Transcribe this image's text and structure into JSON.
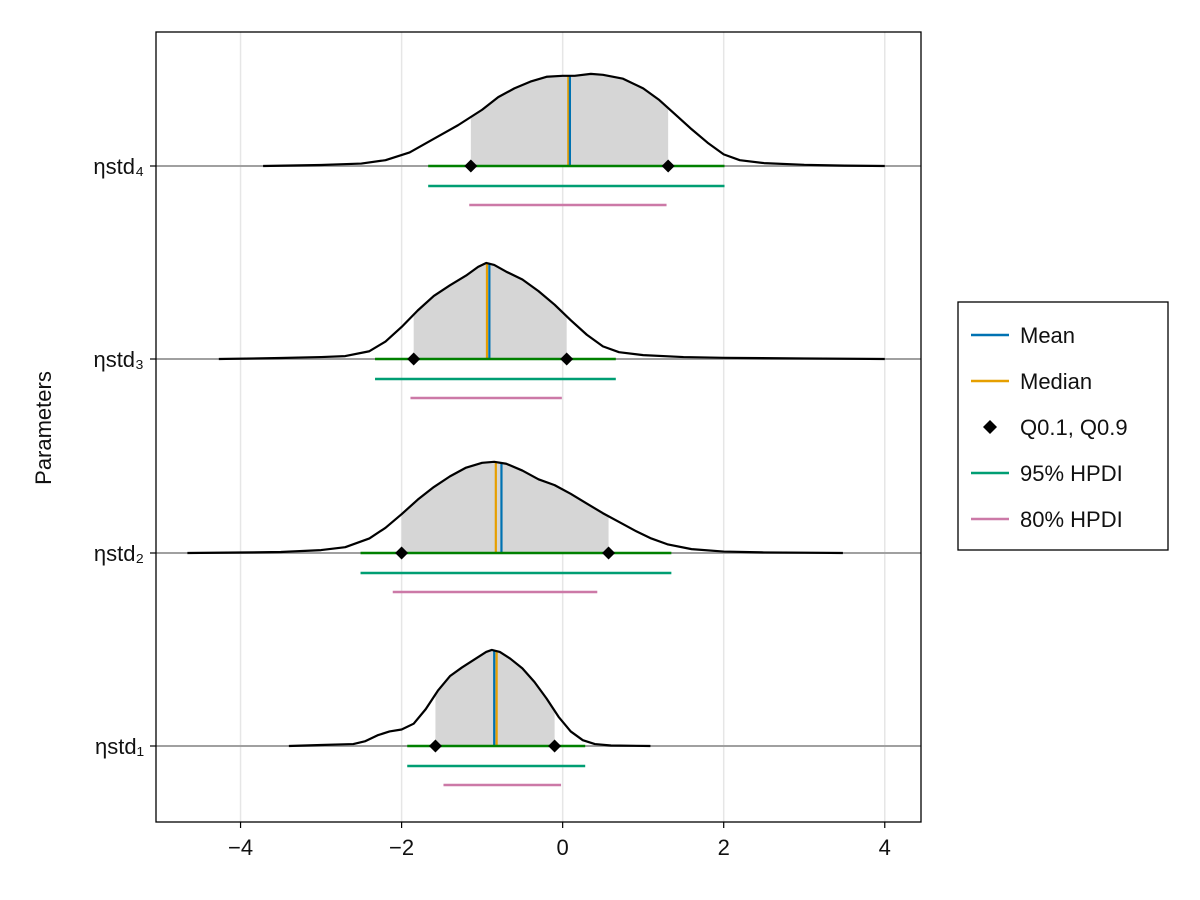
{
  "chart_data": {
    "type": "ridgeline",
    "title": "",
    "xlabel": "",
    "ylabel": "Parameters",
    "xlim": [
      -5.05,
      4.45
    ],
    "x_ticks": [
      -4,
      -2,
      0,
      2,
      4
    ],
    "x_tick_labels": [
      "−4",
      "−2",
      "0",
      "2",
      "4"
    ],
    "grid": true,
    "legend_position": "right",
    "legend": [
      {
        "label": "Mean",
        "kind": "line",
        "color": "#0072b2"
      },
      {
        "label": "Median",
        "kind": "line",
        "color": "#e69f00"
      },
      {
        "label": "Q0.1, Q0.9",
        "kind": "marker",
        "color": "#000000"
      },
      {
        "label": "95% HPDI",
        "kind": "line",
        "color": "#009e73"
      },
      {
        "label": "80% HPDI",
        "kind": "line",
        "color": "#cc79a7"
      }
    ],
    "colors": {
      "density_fill": "#d6d6d6",
      "density_line": "#000000",
      "baseline": "#a0a0a0",
      "q_range": "#008000",
      "mean": "#0072b2",
      "median": "#e69f00",
      "hpdi95": "#009e73",
      "hpdi80": "#cc79a7",
      "grid": "#e6e6e6"
    },
    "parameters": [
      {
        "name": "ηstd₄",
        "mean": 0.09,
        "median": 0.07,
        "q10": -1.14,
        "q90": 1.31,
        "hpdi95": [
          -1.67,
          2.01
        ],
        "hpdi80": [
          -1.16,
          1.29
        ],
        "support": [
          -3.72,
          4.0
        ],
        "density": [
          [
            -3.72,
            0.0
          ],
          [
            -3.0,
            0.01
          ],
          [
            -2.5,
            0.025
          ],
          [
            -2.2,
            0.06
          ],
          [
            -1.9,
            0.14
          ],
          [
            -1.6,
            0.28
          ],
          [
            -1.3,
            0.42
          ],
          [
            -1.0,
            0.58
          ],
          [
            -0.8,
            0.71
          ],
          [
            -0.6,
            0.8
          ],
          [
            -0.4,
            0.87
          ],
          [
            -0.2,
            0.92
          ],
          [
            0.0,
            0.93
          ],
          [
            0.15,
            0.93
          ],
          [
            0.35,
            0.95
          ],
          [
            0.5,
            0.94
          ],
          [
            0.75,
            0.9
          ],
          [
            1.0,
            0.8
          ],
          [
            1.2,
            0.68
          ],
          [
            1.4,
            0.53
          ],
          [
            1.6,
            0.38
          ],
          [
            1.8,
            0.24
          ],
          [
            2.0,
            0.12
          ],
          [
            2.2,
            0.06
          ],
          [
            2.5,
            0.03
          ],
          [
            3.0,
            0.012
          ],
          [
            3.5,
            0.004
          ],
          [
            4.0,
            0.0
          ]
        ]
      },
      {
        "name": "ηstd₃",
        "mean": -0.91,
        "median": -0.94,
        "q10": -1.85,
        "q90": 0.05,
        "hpdi95": [
          -2.33,
          0.66
        ],
        "hpdi80": [
          -1.89,
          -0.01
        ],
        "support": [
          -4.27,
          4.0
        ],
        "density": [
          [
            -4.27,
            0.0
          ],
          [
            -3.5,
            0.01
          ],
          [
            -3.0,
            0.02
          ],
          [
            -2.7,
            0.03
          ],
          [
            -2.4,
            0.08
          ],
          [
            -2.2,
            0.18
          ],
          [
            -2.0,
            0.33
          ],
          [
            -1.8,
            0.5
          ],
          [
            -1.6,
            0.65
          ],
          [
            -1.4,
            0.76
          ],
          [
            -1.2,
            0.86
          ],
          [
            -1.05,
            0.95
          ],
          [
            -0.95,
            0.99
          ],
          [
            -0.85,
            0.97
          ],
          [
            -0.7,
            0.9
          ],
          [
            -0.5,
            0.82
          ],
          [
            -0.3,
            0.7
          ],
          [
            -0.1,
            0.56
          ],
          [
            0.1,
            0.4
          ],
          [
            0.3,
            0.25
          ],
          [
            0.5,
            0.13
          ],
          [
            0.7,
            0.07
          ],
          [
            1.0,
            0.04
          ],
          [
            1.5,
            0.02
          ],
          [
            2.0,
            0.012
          ],
          [
            3.0,
            0.006
          ],
          [
            4.0,
            0.0
          ]
        ]
      },
      {
        "name": "ηstd₂",
        "mean": -0.76,
        "median": -0.83,
        "q10": -2.0,
        "q90": 0.57,
        "hpdi95": [
          -2.51,
          1.35
        ],
        "hpdi80": [
          -2.11,
          0.43
        ],
        "support": [
          -4.66,
          3.48
        ],
        "density": [
          [
            -4.66,
            0.0
          ],
          [
            -4.0,
            0.005
          ],
          [
            -3.5,
            0.01
          ],
          [
            -3.0,
            0.03
          ],
          [
            -2.7,
            0.06
          ],
          [
            -2.4,
            0.15
          ],
          [
            -2.2,
            0.26
          ],
          [
            -2.0,
            0.4
          ],
          [
            -1.8,
            0.55
          ],
          [
            -1.6,
            0.68
          ],
          [
            -1.4,
            0.79
          ],
          [
            -1.2,
            0.88
          ],
          [
            -1.0,
            0.93
          ],
          [
            -0.85,
            0.94
          ],
          [
            -0.7,
            0.92
          ],
          [
            -0.5,
            0.85
          ],
          [
            -0.3,
            0.76
          ],
          [
            -0.1,
            0.7
          ],
          [
            0.1,
            0.61
          ],
          [
            0.3,
            0.51
          ],
          [
            0.5,
            0.41
          ],
          [
            0.7,
            0.32
          ],
          [
            0.9,
            0.23
          ],
          [
            1.1,
            0.15
          ],
          [
            1.3,
            0.09
          ],
          [
            1.6,
            0.04
          ],
          [
            2.0,
            0.015
          ],
          [
            2.5,
            0.006
          ],
          [
            3.0,
            0.003
          ],
          [
            3.48,
            0.0
          ]
        ]
      },
      {
        "name": "ηstd₁",
        "mean": -0.85,
        "median": -0.82,
        "q10": -1.58,
        "q90": -0.1,
        "hpdi95": [
          -1.93,
          0.28
        ],
        "hpdi80": [
          -1.48,
          -0.02
        ],
        "support": [
          -3.4,
          1.09
        ],
        "density": [
          [
            -3.4,
            0.0
          ],
          [
            -3.0,
            0.01
          ],
          [
            -2.6,
            0.02
          ],
          [
            -2.45,
            0.05
          ],
          [
            -2.3,
            0.11
          ],
          [
            -2.15,
            0.15
          ],
          [
            -2.0,
            0.17
          ],
          [
            -1.85,
            0.23
          ],
          [
            -1.7,
            0.38
          ],
          [
            -1.55,
            0.57
          ],
          [
            -1.4,
            0.72
          ],
          [
            -1.25,
            0.81
          ],
          [
            -1.1,
            0.89
          ],
          [
            -0.95,
            0.97
          ],
          [
            -0.88,
            0.99
          ],
          [
            -0.78,
            0.97
          ],
          [
            -0.65,
            0.9
          ],
          [
            -0.5,
            0.8
          ],
          [
            -0.35,
            0.66
          ],
          [
            -0.2,
            0.49
          ],
          [
            -0.05,
            0.3
          ],
          [
            0.1,
            0.15
          ],
          [
            0.25,
            0.06
          ],
          [
            0.4,
            0.02
          ],
          [
            0.6,
            0.005
          ],
          [
            1.09,
            0.0
          ]
        ]
      }
    ]
  }
}
